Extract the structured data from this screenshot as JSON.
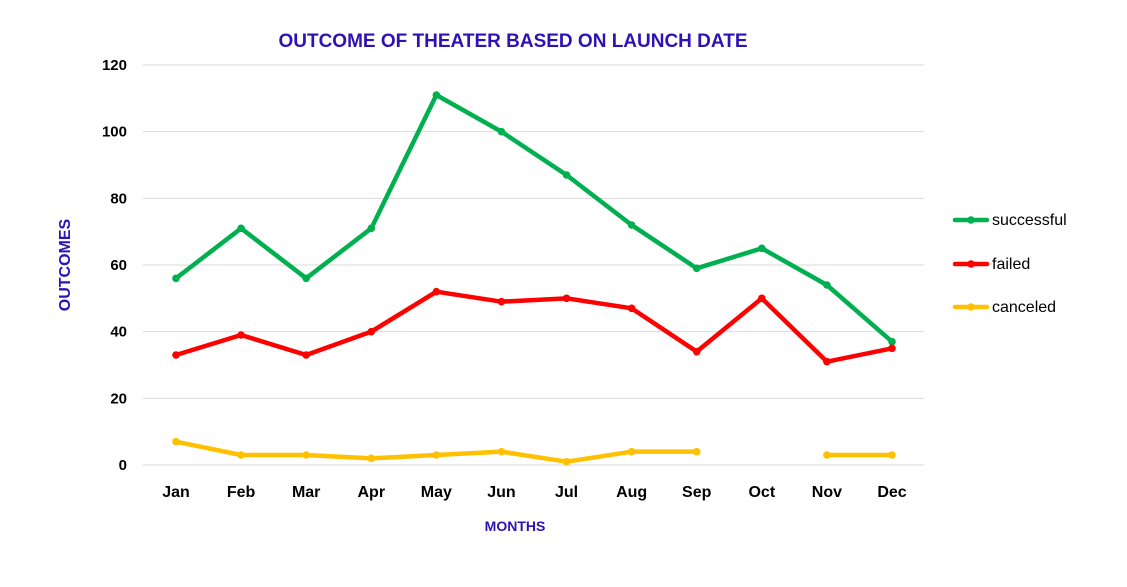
{
  "chart_data": {
    "type": "line",
    "title": "OUTCOME OF THEATER BASED ON LAUNCH DATE",
    "xlabel": "MONTHS",
    "ylabel": "OUTCOMES",
    "categories": [
      "Jan",
      "Feb",
      "Mar",
      "Apr",
      "May",
      "Jun",
      "Jul",
      "Aug",
      "Sep",
      "Oct",
      "Nov",
      "Dec"
    ],
    "ylim": [
      0,
      120
    ],
    "yticks": [
      "0",
      "20",
      "40",
      "60",
      "80",
      "100",
      "120"
    ],
    "grid": true,
    "legend_position": "right",
    "series": [
      {
        "name": "successful",
        "color": "#00b050",
        "values": [
          56,
          71,
          56,
          71,
          111,
          100,
          87,
          72,
          59,
          65,
          54,
          37
        ]
      },
      {
        "name": "failed",
        "color": "#ff0000",
        "values": [
          33,
          39,
          33,
          40,
          52,
          49,
          50,
          47,
          34,
          50,
          31,
          35
        ]
      },
      {
        "name": "canceled",
        "color": "#ffc000",
        "values": [
          7,
          3,
          3,
          2,
          3,
          4,
          1,
          4,
          4,
          null,
          3,
          3
        ]
      }
    ]
  }
}
